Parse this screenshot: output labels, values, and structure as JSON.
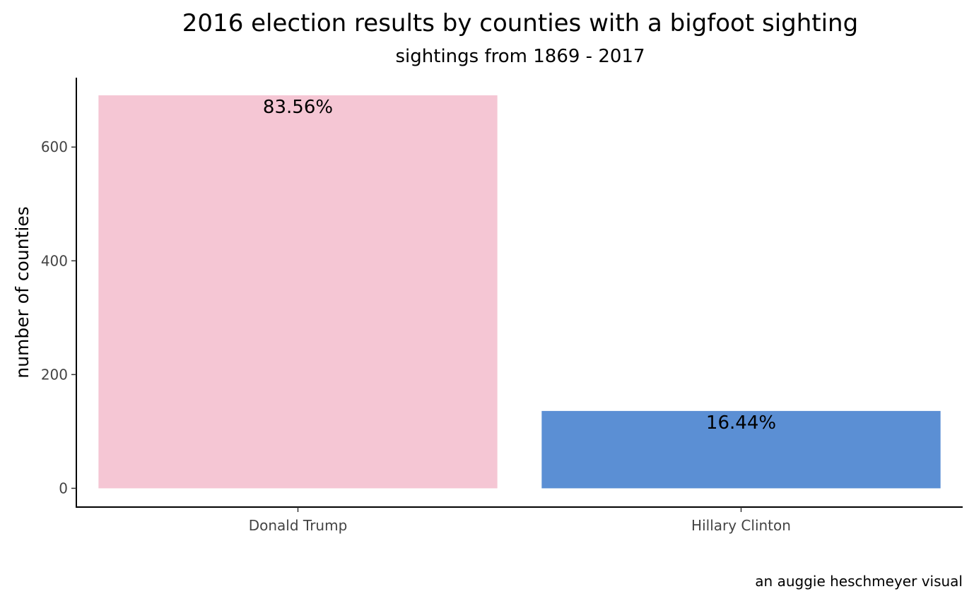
{
  "chart_data": {
    "type": "bar",
    "title": "2016 election results by counties with a bigfoot sighting",
    "subtitle": "sightings from 1869 - 2017",
    "xlabel": "",
    "ylabel": "number of counties",
    "categories": [
      "Donald Trump",
      "Hillary Clinton"
    ],
    "values": [
      691,
      136
    ],
    "data_labels": [
      "83.56%",
      "16.44%"
    ],
    "colors": [
      "#f5c6d4",
      "#5b8fd4"
    ],
    "ylim": [
      -33,
      722
    ],
    "yticks": [
      0,
      200,
      400,
      600
    ],
    "ytick_labels": [
      "0",
      "200",
      "400",
      "600"
    ],
    "grid": false,
    "legend": "none",
    "caption": "an auggie heschmeyer visual"
  }
}
